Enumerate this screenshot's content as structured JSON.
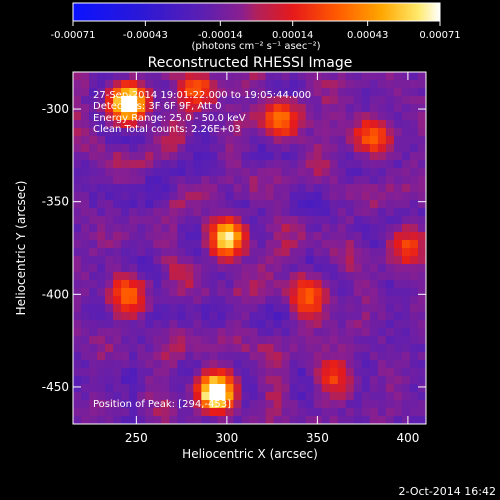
{
  "chart_data": {
    "type": "heatmap",
    "title": "Reconstructed RHESSI Image",
    "xlabel": "Heliocentric X (arcsec)",
    "ylabel": "Heliocentric Y (arcsec)",
    "xlim": [
      215,
      410
    ],
    "ylim": [
      -470,
      -280
    ],
    "x_ticks": [
      250,
      300,
      350,
      400
    ],
    "y_ticks": [
      -300,
      -350,
      -400,
      -450
    ],
    "colorbar": {
      "range": [
        -0.00071,
        0.00071
      ],
      "tick_values": [
        -0.00071,
        -0.00043,
        -0.00014,
        0.00014,
        0.00043,
        0.00071
      ],
      "tick_labels": [
        "-0.00071",
        "-0.00043",
        "-0.00014",
        "0.00014",
        "0.00043",
        "0.00071"
      ],
      "unit_label": "(photons cm⁻² s⁻¹ asec⁻²)"
    },
    "annotations": {
      "time": "27-Sep-2014 19:01:22.000 to 19:05:44.000",
      "detectors": "Detectors: 3F 6F 9F, Att 0",
      "energy": "Energy Range: 25.0 - 50.0 keV",
      "method": "Clean   Total counts: 2.26E+03",
      "peak": "Position of Peak: [294,-453]"
    },
    "sources": [
      {
        "x": 294,
        "y": -453,
        "relative_intensity": 1.0
      },
      {
        "x": 245,
        "y": -297,
        "relative_intensity": 0.95
      },
      {
        "x": 300,
        "y": -370,
        "relative_intensity": 0.75
      }
    ]
  },
  "footer": {
    "date": "2-Oct-2014 16:42"
  }
}
